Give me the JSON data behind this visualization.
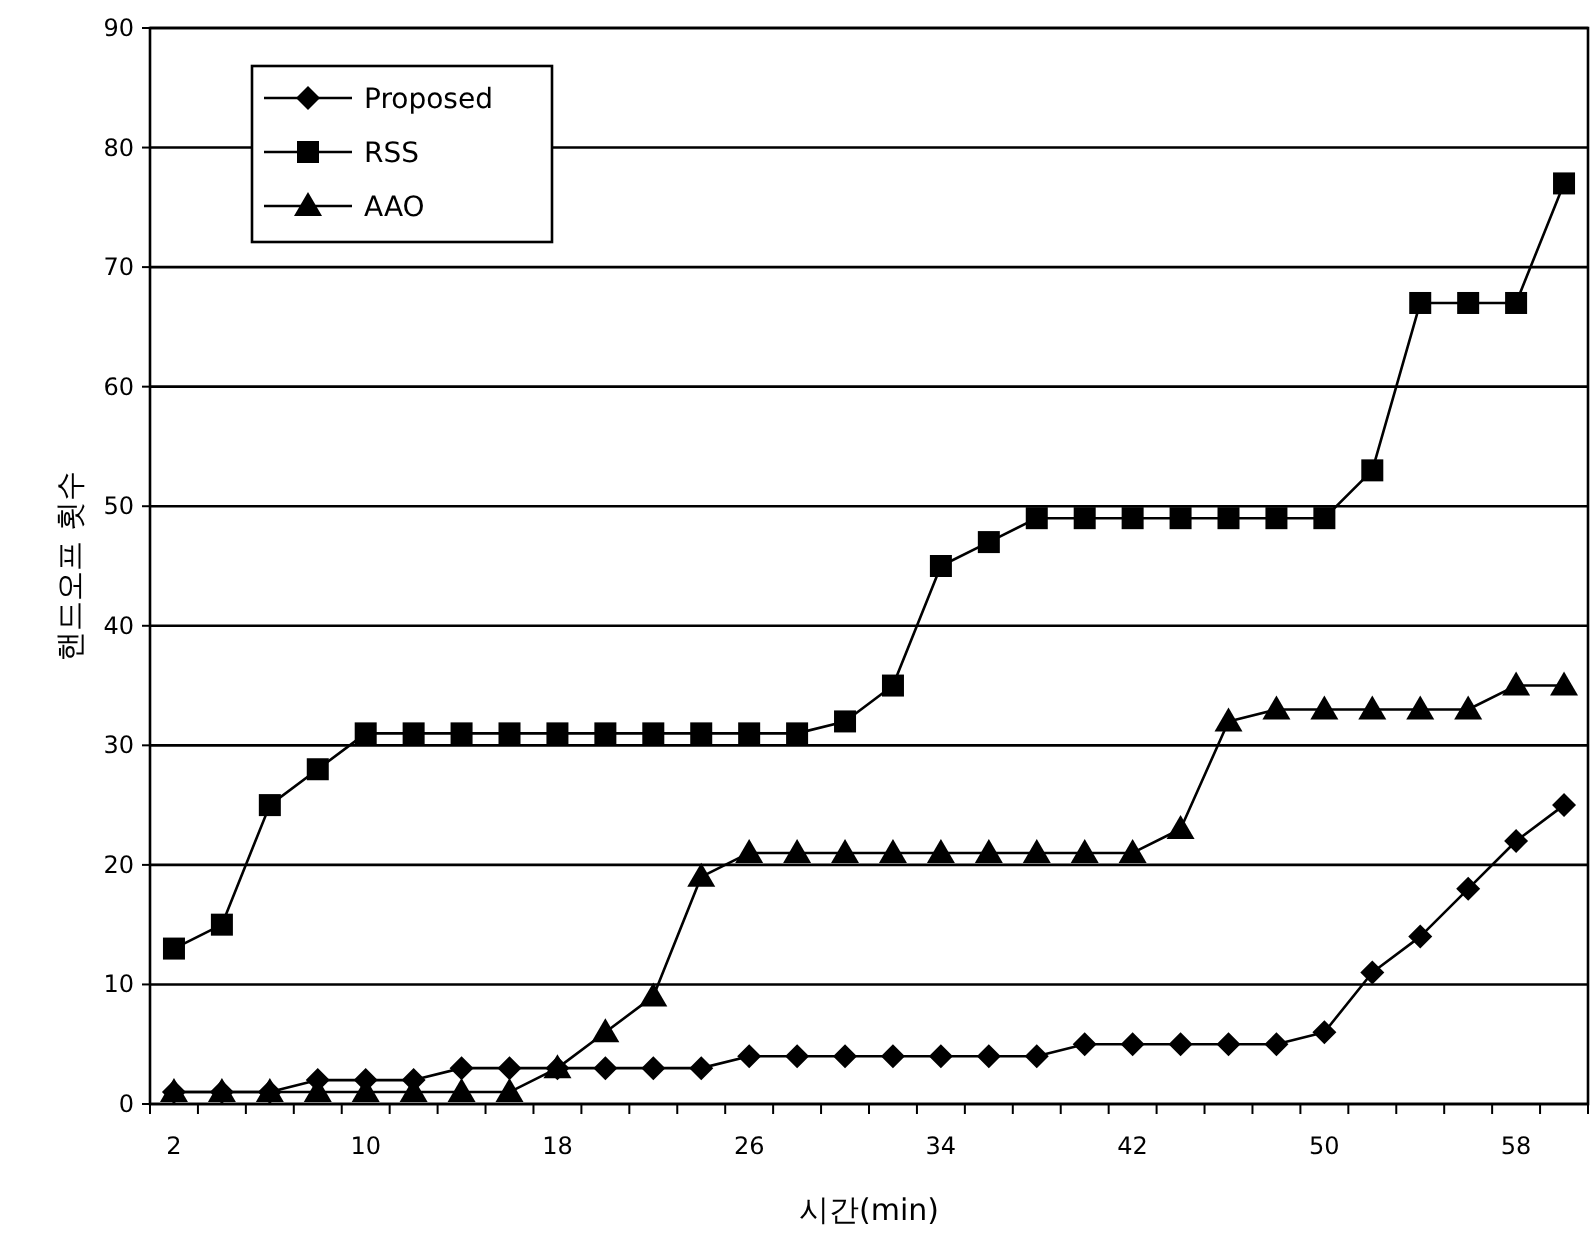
{
  "chart_data": {
    "type": "line",
    "xlabel": "시간(min)",
    "ylabel": "핸드오프 횟수",
    "categories": [
      "2",
      null,
      null,
      null,
      "10",
      null,
      null,
      null,
      "18",
      null,
      null,
      null,
      "26",
      null,
      null,
      null,
      "34",
      null,
      null,
      null,
      "42",
      null,
      null,
      null,
      "50",
      null,
      null,
      null,
      "58",
      null
    ],
    "ylim": [
      0,
      90
    ],
    "yticks": [
      0,
      10,
      20,
      30,
      40,
      50,
      60,
      70,
      80,
      90
    ],
    "grid": "y",
    "legend": "top left",
    "line_style": "solid",
    "series": [
      {
        "name": "Proposed",
        "color": "#000000",
        "marker": "diamond",
        "values": [
          1,
          1,
          1,
          2,
          2,
          2,
          3,
          3,
          3,
          3,
          3,
          3,
          4,
          4,
          4,
          4,
          4,
          4,
          4,
          5,
          5,
          5,
          5,
          5,
          6,
          11,
          14,
          18,
          22,
          25
        ]
      },
      {
        "name": "RSS",
        "color": "#000000",
        "marker": "square",
        "values": [
          13,
          15,
          25,
          28,
          31,
          31,
          31,
          31,
          31,
          31,
          31,
          31,
          31,
          31,
          32,
          35,
          45,
          47,
          49,
          49,
          49,
          49,
          49,
          49,
          49,
          53,
          67,
          67,
          67,
          77
        ]
      },
      {
        "name": "AAO",
        "color": "#000000",
        "marker": "triangle",
        "values": [
          1,
          1,
          1,
          1,
          1,
          1,
          1,
          1,
          3,
          6,
          9,
          19,
          21,
          21,
          21,
          21,
          21,
          21,
          21,
          21,
          21,
          23,
          32,
          33,
          33,
          33,
          33,
          33,
          35,
          35
        ]
      }
    ]
  }
}
